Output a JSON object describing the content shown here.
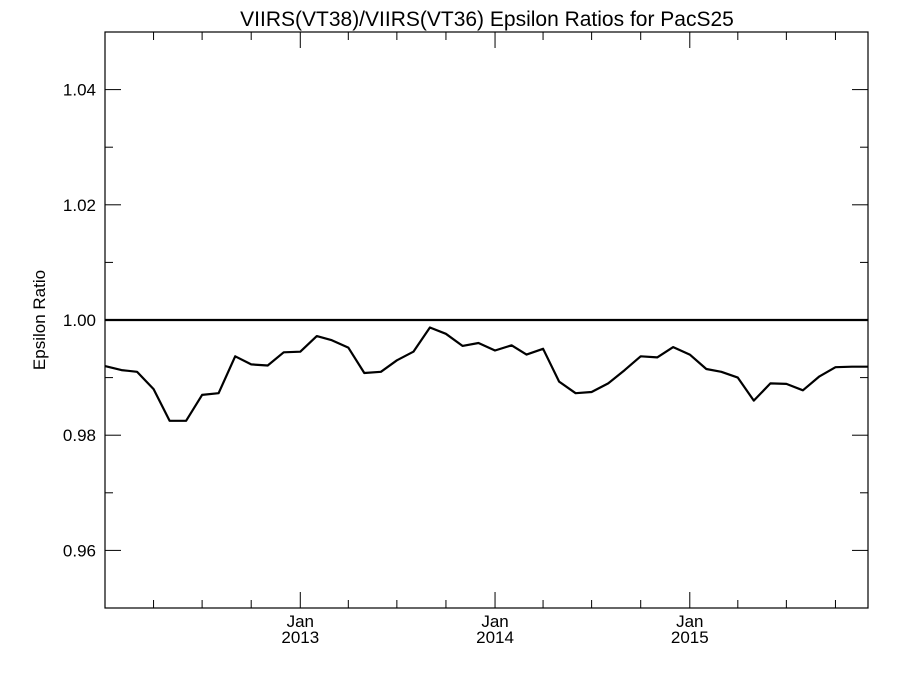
{
  "chart_data": {
    "type": "line",
    "title": "VIIRS(VT38)/VIIRS(VT36)  Epsilon Ratios for PacS25",
    "ylabel": "Epsilon Ratio",
    "xlabel": "",
    "xlim": [
      "2012-01-01",
      "2015-12-01"
    ],
    "ylim": [
      0.95,
      1.05
    ],
    "y_ticks": [
      "0.96",
      "0.98",
      "1.00",
      "1.02",
      "1.04"
    ],
    "x_ticks": [
      {
        "date": "2013-01-01",
        "month": "Jan",
        "year": "2013"
      },
      {
        "date": "2014-01-01",
        "month": "Jan",
        "year": "2014"
      },
      {
        "date": "2015-01-01",
        "month": "Jan",
        "year": "2015"
      }
    ],
    "reference_line": 1.0,
    "grid": false,
    "series": [
      {
        "x": [
          "2012-01-01",
          "2012-02-01",
          "2012-03-01",
          "2012-04-01",
          "2012-05-01",
          "2012-06-01",
          "2012-07-01",
          "2012-08-01",
          "2012-09-01",
          "2012-10-01",
          "2012-11-01",
          "2012-12-01",
          "2013-01-01",
          "2013-02-01",
          "2013-03-01",
          "2013-04-01",
          "2013-05-01",
          "2013-06-01",
          "2013-07-01",
          "2013-08-01",
          "2013-09-01",
          "2013-10-01",
          "2013-11-01",
          "2013-12-01",
          "2014-01-01",
          "2014-02-01",
          "2014-03-01",
          "2014-04-01",
          "2014-05-01",
          "2014-06-01",
          "2014-07-01",
          "2014-08-01",
          "2014-09-01",
          "2014-10-01",
          "2014-11-01",
          "2014-12-01",
          "2015-01-01",
          "2015-02-01",
          "2015-03-01",
          "2015-04-01",
          "2015-05-01",
          "2015-06-01",
          "2015-07-01",
          "2015-08-01",
          "2015-09-01",
          "2015-10-01",
          "2015-11-01",
          "2015-12-01"
        ],
        "y": [
          0.992,
          0.9913,
          0.991,
          0.988,
          0.9825,
          0.9825,
          0.987,
          0.9873,
          0.9937,
          0.9923,
          0.9921,
          0.9944,
          0.9945,
          0.9972,
          0.9965,
          0.9952,
          0.9908,
          0.991,
          0.993,
          0.9945,
          0.9987,
          0.9976,
          0.9955,
          0.996,
          0.9947,
          0.9956,
          0.994,
          0.995,
          0.9893,
          0.9873,
          0.9875,
          0.989,
          0.9913,
          0.9937,
          0.9935,
          0.9953,
          0.994,
          0.9915,
          0.991,
          0.99,
          0.986,
          0.989,
          0.9889,
          0.9878,
          0.9902,
          0.9918,
          0.9919,
          0.9919
        ]
      }
    ]
  }
}
